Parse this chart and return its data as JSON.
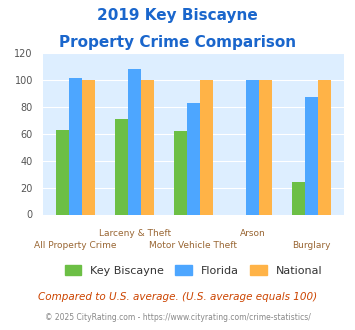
{
  "title_line1": "2019 Key Biscayne",
  "title_line2": "Property Crime Comparison",
  "categories": [
    "All Property Crime",
    "Larceny & Theft",
    "Motor Vehicle Theft",
    "Arson",
    "Burglary"
  ],
  "x_labels_row1": [
    "",
    "Larceny & Theft",
    "",
    "Arson",
    ""
  ],
  "x_labels_row2": [
    "All Property Crime",
    "",
    "Motor Vehicle Theft",
    "",
    "Burglary"
  ],
  "key_biscayne": [
    63,
    71,
    62,
    0,
    24
  ],
  "florida": [
    101,
    108,
    83,
    100,
    87
  ],
  "national": [
    100,
    100,
    100,
    100,
    100
  ],
  "color_kb": "#6cbf45",
  "color_fl": "#4da6ff",
  "color_nat": "#ffb347",
  "ylim": [
    0,
    120
  ],
  "yticks": [
    0,
    20,
    40,
    60,
    80,
    100,
    120
  ],
  "background_color": "#ddeeff",
  "title_color": "#1a66cc",
  "footer_text": "Compared to U.S. average. (U.S. average equals 100)",
  "footer_color": "#cc4400",
  "credit_text": "© 2025 CityRating.com - https://www.cityrating.com/crime-statistics/",
  "credit_color": "#888888",
  "legend_labels": [
    "Key Biscayne",
    "Florida",
    "National"
  ]
}
